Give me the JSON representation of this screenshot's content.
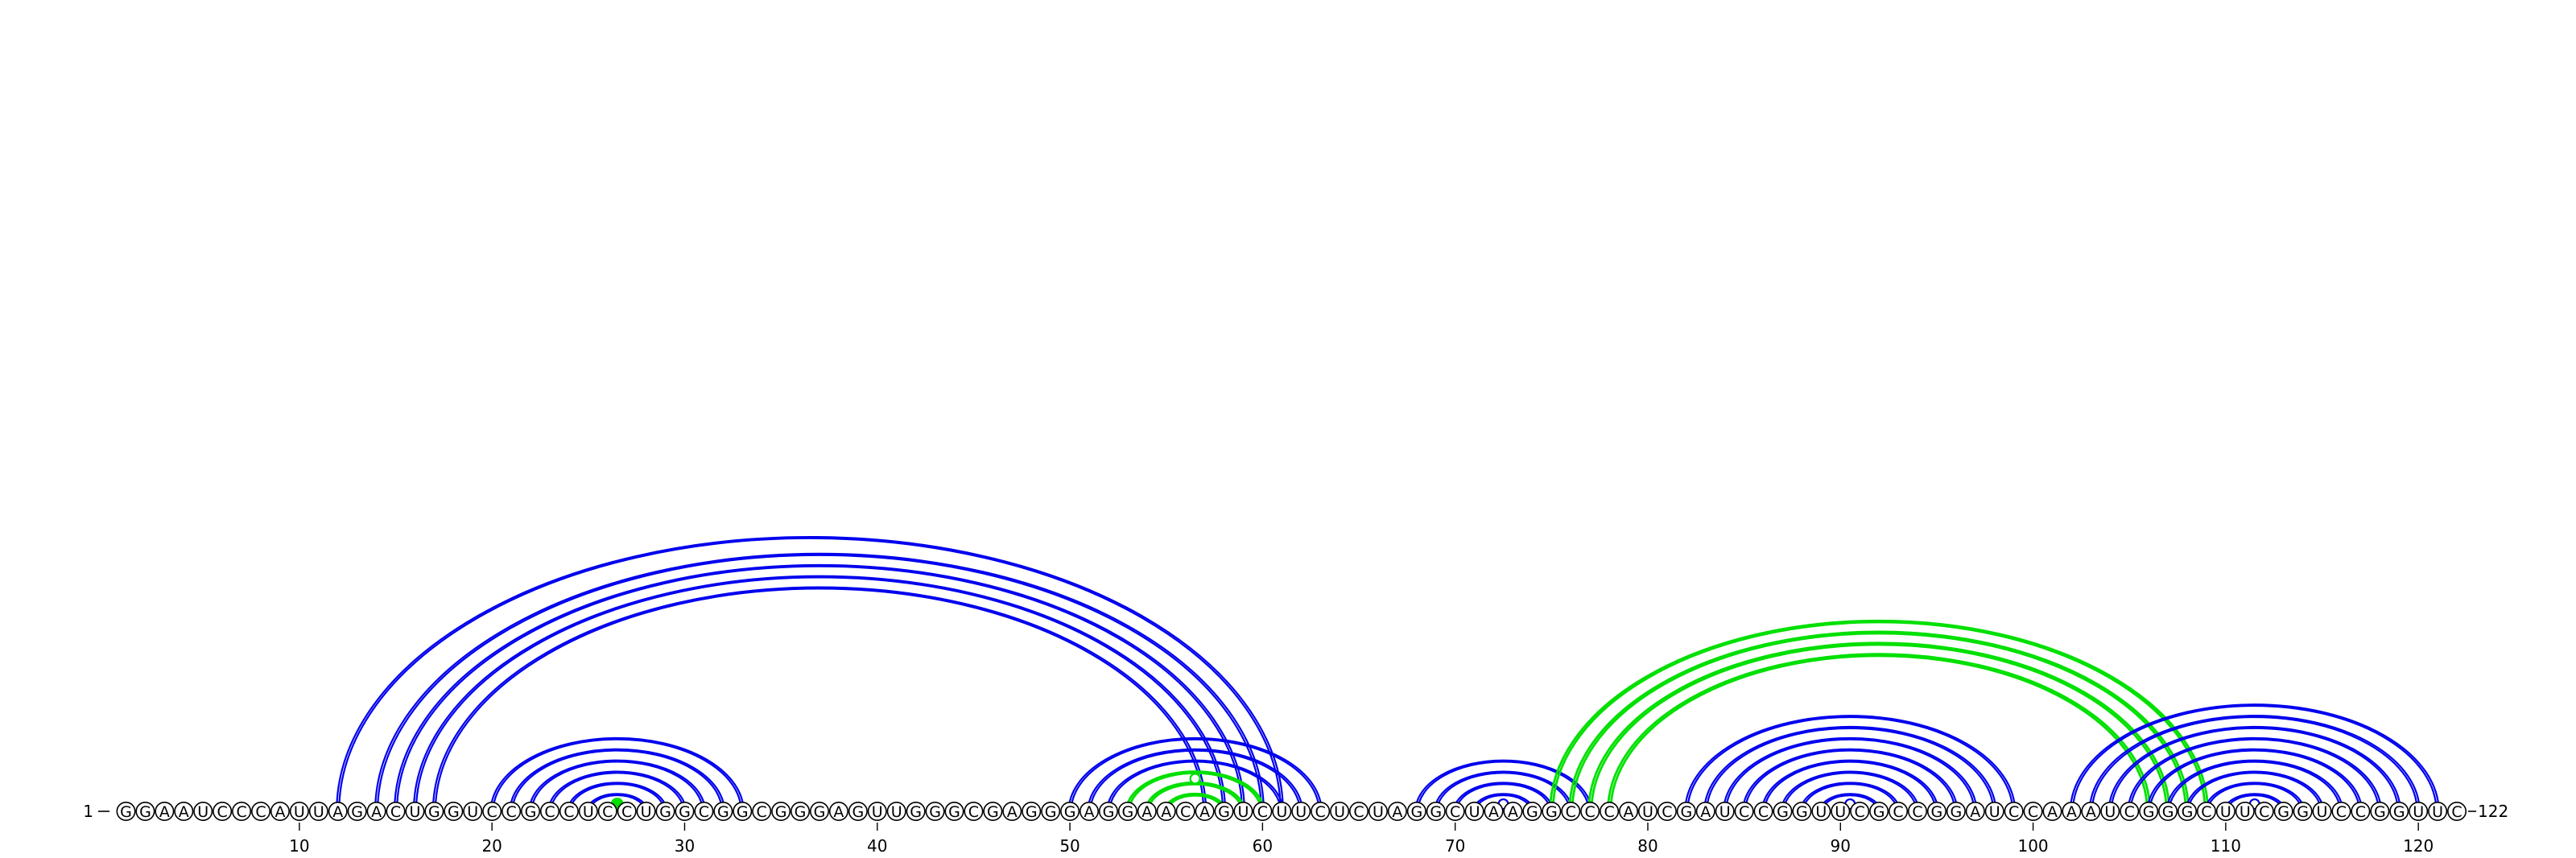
{
  "diagram": {
    "sequence": "GGAAUCCCAUUAGACUGGUCCGCCUCCUGGCGGCGGGAGUUGGGCGAGGGAGGAACAGUCUUCUCUAGGCUAAGGCCCAUCGAUCCGGUUCGCCGGAUCCAAAUCGGGCUUCGGUCCGGUUC",
    "length": 122,
    "start_label": "1",
    "end_label": "122",
    "tick_labels": [
      "10",
      "20",
      "30",
      "40",
      "50",
      "60",
      "70",
      "80",
      "90",
      "100",
      "110",
      "120"
    ],
    "colors": {
      "blue": "#0000ee",
      "green": "#00e000",
      "node_fill": "#ffffff",
      "text": "#000000"
    },
    "helices": [
      {
        "color": "blue",
        "pairs": [
          [
            12,
            61
          ],
          [
            14,
            60
          ],
          [
            15,
            59
          ],
          [
            16,
            58
          ],
          [
            17,
            57
          ]
        ]
      },
      {
        "color": "blue",
        "pairs": [
          [
            20,
            33
          ],
          [
            21,
            32
          ],
          [
            22,
            31
          ],
          [
            23,
            30
          ],
          [
            24,
            29
          ],
          [
            25,
            28
          ]
        ]
      },
      {
        "color": "green",
        "pairs": [
          [
            26,
            27
          ]
        ]
      },
      {
        "color": "blue",
        "pairs": [
          [
            50,
            63
          ],
          [
            51,
            62
          ],
          [
            52,
            61
          ]
        ]
      },
      {
        "color": "green",
        "pairs": [
          [
            53,
            60
          ],
          [
            54,
            59
          ],
          [
            55,
            58
          ]
        ]
      },
      {
        "color": "blue",
        "pairs": [
          [
            68,
            77
          ],
          [
            69,
            76
          ],
          [
            70,
            75
          ],
          [
            71,
            74
          ],
          [
            72,
            73
          ]
        ]
      },
      {
        "color": "green",
        "pairs": [
          [
            75,
            109
          ],
          [
            76,
            108
          ],
          [
            77,
            107
          ],
          [
            78,
            106
          ]
        ]
      },
      {
        "color": "blue",
        "pairs": [
          [
            82,
            99
          ],
          [
            83,
            98
          ],
          [
            84,
            97
          ],
          [
            85,
            96
          ],
          [
            86,
            95
          ],
          [
            87,
            94
          ],
          [
            88,
            93
          ],
          [
            89,
            92
          ],
          [
            90,
            91
          ]
        ]
      },
      {
        "color": "blue",
        "pairs": [
          [
            102,
            121
          ],
          [
            103,
            120
          ],
          [
            104,
            119
          ],
          [
            105,
            118
          ],
          [
            106,
            117
          ],
          [
            107,
            116
          ],
          [
            108,
            115
          ],
          [
            109,
            114
          ],
          [
            110,
            113
          ],
          [
            111,
            112
          ]
        ]
      }
    ],
    "unpaired_markers": [
      {
        "color": "green",
        "filled": true,
        "between": [
          26,
          27
        ]
      },
      {
        "color": "green",
        "filled": false,
        "between": [
          56,
          57
        ]
      },
      {
        "color": "blue",
        "filled": false,
        "between": [
          72,
          73
        ]
      },
      {
        "color": "blue",
        "filled": false,
        "between": [
          90,
          91
        ]
      },
      {
        "color": "blue",
        "filled": false,
        "between": [
          111,
          112
        ]
      }
    ]
  }
}
